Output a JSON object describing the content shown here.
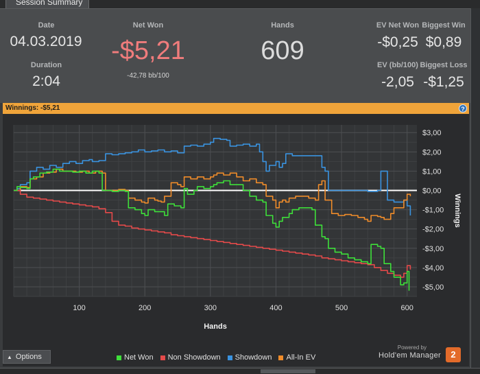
{
  "tab": {
    "label": "Session Summary"
  },
  "summary": {
    "date": {
      "label": "Date",
      "value": "04.03.2019"
    },
    "duration": {
      "label": "Duration",
      "value": "2:04"
    },
    "net_won": {
      "label": "Net Won",
      "value": "-$5,21",
      "sub": "-42,78 bb/100"
    },
    "hands": {
      "label": "Hands",
      "value": "609"
    },
    "ev_net_won": {
      "label": "EV Net Won",
      "value": "-$0,25"
    },
    "biggest_win": {
      "label": "Biggest Win",
      "value": "$0,89"
    },
    "ev_bb": {
      "label": "EV (bb/100)",
      "value": "-2,05"
    },
    "biggest_loss": {
      "label": "Biggest Loss",
      "value": "-$1,25"
    }
  },
  "banner": {
    "text": "Winnings:  -$5,21",
    "help": "?"
  },
  "options": {
    "label": "Options"
  },
  "brand": {
    "powered": "Powered by",
    "name": "Hold'em Manager",
    "badge": "2"
  },
  "colors": {
    "net_won": "#3ee03a",
    "non_showdown": "#e54a4a",
    "showdown": "#3a93e0",
    "all_in_ev": "#f08c2a",
    "zero_line": "#ffffff",
    "negative": "#f07c7c",
    "banner": "#f0a43a"
  },
  "chart_data": {
    "type": "line",
    "xlabel": "Hands",
    "ylabel": "Winnings",
    "xlim": [
      0,
      615
    ],
    "ylim": [
      -5.5,
      3.4
    ],
    "x_ticks": [
      100,
      200,
      300,
      400,
      500,
      600
    ],
    "y_ticks": [
      3,
      2,
      1,
      0,
      -1,
      -2,
      -3,
      -4,
      -5
    ],
    "y_tick_labels": [
      "$3,00",
      "$2,00",
      "$1,00",
      "$0,00",
      "-$1,00",
      "-$2,00",
      "-$3,00",
      "-$4,00",
      "-$5,00"
    ],
    "legend": "bottom",
    "grid": true,
    "series": [
      {
        "name": "Net Won",
        "color": "#3ee03a",
        "points": [
          [
            0,
            0.0
          ],
          [
            5,
            0.2
          ],
          [
            10,
            0.15
          ],
          [
            20,
            0.1
          ],
          [
            25,
            0.6
          ],
          [
            30,
            0.7
          ],
          [
            40,
            0.9
          ],
          [
            50,
            0.95
          ],
          [
            60,
            1.1
          ],
          [
            70,
            1.0
          ],
          [
            80,
            1.0
          ],
          [
            90,
            0.95
          ],
          [
            100,
            1.0
          ],
          [
            110,
            0.9
          ],
          [
            120,
            1.0
          ],
          [
            130,
            0.9
          ],
          [
            135,
            0.0
          ],
          [
            145,
            0.0
          ],
          [
            150,
            -0.05
          ],
          [
            160,
            0.0
          ],
          [
            170,
            -0.05
          ],
          [
            175,
            -0.9
          ],
          [
            185,
            -1.0
          ],
          [
            195,
            -1.2
          ],
          [
            200,
            -1.3
          ],
          [
            205,
            -1.0
          ],
          [
            215,
            -1.1
          ],
          [
            230,
            -1.3
          ],
          [
            235,
            -0.7
          ],
          [
            245,
            -0.8
          ],
          [
            255,
            -0.9
          ],
          [
            260,
            0.1
          ],
          [
            265,
            -0.2
          ],
          [
            275,
            0.0
          ],
          [
            280,
            0.2
          ],
          [
            290,
            0.1
          ],
          [
            300,
            0.2
          ],
          [
            305,
            0.3
          ],
          [
            310,
            0.4
          ],
          [
            320,
            0.5
          ],
          [
            330,
            0.3
          ],
          [
            340,
            0.3
          ],
          [
            350,
            0.0
          ],
          [
            360,
            -0.3
          ],
          [
            370,
            -0.5
          ],
          [
            380,
            -0.6
          ],
          [
            385,
            -1.3
          ],
          [
            395,
            -1.7
          ],
          [
            400,
            -1.9
          ],
          [
            405,
            -1.6
          ],
          [
            410,
            -1.4
          ],
          [
            420,
            -1.2
          ],
          [
            425,
            -1.0
          ],
          [
            435,
            -0.9
          ],
          [
            445,
            -0.9
          ],
          [
            455,
            -1.0
          ],
          [
            460,
            -1.8
          ],
          [
            470,
            -2.4
          ],
          [
            475,
            -2.5
          ],
          [
            480,
            -3.0
          ],
          [
            490,
            -3.2
          ],
          [
            500,
            -3.3
          ],
          [
            510,
            -3.5
          ],
          [
            520,
            -3.6
          ],
          [
            530,
            -3.7
          ],
          [
            540,
            -3.8
          ],
          [
            545,
            -2.8
          ],
          [
            555,
            -2.9
          ],
          [
            560,
            -3.0
          ],
          [
            565,
            -3.8
          ],
          [
            575,
            -4.2
          ],
          [
            580,
            -4.5
          ],
          [
            590,
            -4.9
          ],
          [
            595,
            -4.8
          ],
          [
            600,
            -4.2
          ],
          [
            603,
            -5.2
          ]
        ]
      },
      {
        "name": "Non Showdown",
        "color": "#e54a4a",
        "points": [
          [
            0,
            0.0
          ],
          [
            10,
            -0.2
          ],
          [
            20,
            -0.35
          ],
          [
            30,
            -0.4
          ],
          [
            40,
            -0.45
          ],
          [
            50,
            -0.5
          ],
          [
            60,
            -0.55
          ],
          [
            70,
            -0.6
          ],
          [
            80,
            -0.65
          ],
          [
            90,
            -0.7
          ],
          [
            100,
            -0.75
          ],
          [
            110,
            -0.8
          ],
          [
            120,
            -0.85
          ],
          [
            130,
            -0.95
          ],
          [
            140,
            -1.15
          ],
          [
            150,
            -1.6
          ],
          [
            160,
            -1.8
          ],
          [
            170,
            -1.85
          ],
          [
            180,
            -1.95
          ],
          [
            190,
            -2.0
          ],
          [
            200,
            -2.05
          ],
          [
            210,
            -2.1
          ],
          [
            220,
            -2.15
          ],
          [
            230,
            -2.2
          ],
          [
            240,
            -2.3
          ],
          [
            250,
            -2.35
          ],
          [
            260,
            -2.4
          ],
          [
            270,
            -2.45
          ],
          [
            280,
            -2.5
          ],
          [
            290,
            -2.55
          ],
          [
            300,
            -2.6
          ],
          [
            310,
            -2.65
          ],
          [
            320,
            -2.7
          ],
          [
            330,
            -2.75
          ],
          [
            340,
            -2.8
          ],
          [
            350,
            -2.85
          ],
          [
            360,
            -2.9
          ],
          [
            370,
            -2.95
          ],
          [
            380,
            -3.0
          ],
          [
            390,
            -3.05
          ],
          [
            400,
            -3.1
          ],
          [
            410,
            -3.15
          ],
          [
            420,
            -3.2
          ],
          [
            430,
            -3.25
          ],
          [
            440,
            -3.3
          ],
          [
            450,
            -3.35
          ],
          [
            460,
            -3.4
          ],
          [
            470,
            -3.5
          ],
          [
            480,
            -3.55
          ],
          [
            490,
            -3.6
          ],
          [
            500,
            -3.65
          ],
          [
            510,
            -3.7
          ],
          [
            520,
            -3.75
          ],
          [
            530,
            -3.8
          ],
          [
            540,
            -3.85
          ],
          [
            550,
            -4.0
          ],
          [
            560,
            -4.15
          ],
          [
            570,
            -4.3
          ],
          [
            580,
            -4.4
          ],
          [
            590,
            -4.5
          ],
          [
            595,
            -4.3
          ],
          [
            600,
            -3.9
          ],
          [
            605,
            -4.1
          ]
        ]
      },
      {
        "name": "Showdown",
        "color": "#3a93e0",
        "points": [
          [
            0,
            0.0
          ],
          [
            5,
            0.1
          ],
          [
            10,
            0.3
          ],
          [
            20,
            0.4
          ],
          [
            25,
            1.0
          ],
          [
            35,
            1.2
          ],
          [
            45,
            1.1
          ],
          [
            55,
            1.3
          ],
          [
            65,
            1.2
          ],
          [
            75,
            1.4
          ],
          [
            85,
            1.5
          ],
          [
            95,
            1.4
          ],
          [
            105,
            1.55
          ],
          [
            115,
            1.6
          ],
          [
            120,
            1.5
          ],
          [
            130,
            1.55
          ],
          [
            140,
            1.9
          ],
          [
            150,
            1.85
          ],
          [
            160,
            1.9
          ],
          [
            170,
            1.95
          ],
          [
            180,
            2.0
          ],
          [
            190,
            2.1
          ],
          [
            200,
            2.0
          ],
          [
            210,
            2.05
          ],
          [
            220,
            2.1
          ],
          [
            230,
            2.0
          ],
          [
            240,
            2.05
          ],
          [
            250,
            1.95
          ],
          [
            255,
            1.95
          ],
          [
            260,
            2.3
          ],
          [
            270,
            2.35
          ],
          [
            280,
            2.3
          ],
          [
            290,
            2.4
          ],
          [
            300,
            2.5
          ],
          [
            305,
            2.7
          ],
          [
            315,
            2.65
          ],
          [
            325,
            2.6
          ],
          [
            330,
            2.3
          ],
          [
            340,
            2.35
          ],
          [
            350,
            2.4
          ],
          [
            360,
            2.3
          ],
          [
            370,
            2.4
          ],
          [
            375,
            2.0
          ],
          [
            380,
            1.5
          ],
          [
            385,
            1.0
          ],
          [
            390,
            1.3
          ],
          [
            400,
            1.5
          ],
          [
            405,
            1.2
          ],
          [
            410,
            1.4
          ],
          [
            415,
            1.9
          ],
          [
            425,
            1.8
          ],
          [
            435,
            1.8
          ],
          [
            445,
            1.8
          ],
          [
            455,
            1.8
          ],
          [
            460,
            1.8
          ],
          [
            465,
            1.8
          ],
          [
            470,
            1.2
          ],
          [
            475,
            1.0
          ],
          [
            480,
            0.0
          ],
          [
            490,
            0.0
          ],
          [
            500,
            0.0
          ],
          [
            510,
            0.0
          ],
          [
            520,
            0.0
          ],
          [
            530,
            0.0
          ],
          [
            540,
            -0.05
          ],
          [
            550,
            -0.05
          ],
          [
            555,
            0.0
          ],
          [
            560,
            1.0
          ],
          [
            565,
            1.0
          ],
          [
            570,
            -0.5
          ],
          [
            580,
            -0.6
          ],
          [
            590,
            -0.6
          ],
          [
            595,
            -0.5
          ],
          [
            600,
            -0.8
          ],
          [
            605,
            -1.3
          ]
        ]
      },
      {
        "name": "All-In EV",
        "color": "#f08c2a",
        "points": [
          [
            0,
            0.0
          ],
          [
            10,
            0.2
          ],
          [
            20,
            0.15
          ],
          [
            25,
            0.6
          ],
          [
            35,
            0.7
          ],
          [
            45,
            0.9
          ],
          [
            55,
            0.95
          ],
          [
            65,
            1.1
          ],
          [
            75,
            1.0
          ],
          [
            85,
            1.0
          ],
          [
            95,
            0.95
          ],
          [
            105,
            1.0
          ],
          [
            115,
            0.9
          ],
          [
            125,
            1.0
          ],
          [
            135,
            0.9
          ],
          [
            140,
            0.0
          ],
          [
            150,
            0.0
          ],
          [
            160,
            0.05
          ],
          [
            170,
            0.0
          ],
          [
            175,
            -0.4
          ],
          [
            185,
            -0.5
          ],
          [
            195,
            -0.6
          ],
          [
            200,
            -0.65
          ],
          [
            205,
            -0.4
          ],
          [
            215,
            -0.5
          ],
          [
            220,
            -0.55
          ],
          [
            225,
            -0.6
          ],
          [
            230,
            -0.3
          ],
          [
            240,
            0.4
          ],
          [
            250,
            0.3
          ],
          [
            255,
            0.2
          ],
          [
            260,
            0.7
          ],
          [
            270,
            0.6
          ],
          [
            280,
            0.7
          ],
          [
            290,
            0.6
          ],
          [
            300,
            0.7
          ],
          [
            305,
            0.8
          ],
          [
            310,
            0.9
          ],
          [
            320,
            0.8
          ],
          [
            330,
            0.9
          ],
          [
            340,
            0.7
          ],
          [
            350,
            0.5
          ],
          [
            360,
            0.6
          ],
          [
            370,
            0.4
          ],
          [
            380,
            0.3
          ],
          [
            385,
            -0.3
          ],
          [
            395,
            -0.5
          ],
          [
            400,
            -0.9
          ],
          [
            405,
            -0.6
          ],
          [
            410,
            -0.5
          ],
          [
            415,
            -0.6
          ],
          [
            420,
            -0.4
          ],
          [
            430,
            -0.3
          ],
          [
            440,
            -0.3
          ],
          [
            450,
            -0.4
          ],
          [
            460,
            -0.5
          ],
          [
            465,
            0.3
          ],
          [
            470,
            0.5
          ],
          [
            475,
            -0.5
          ],
          [
            485,
            -1.2
          ],
          [
            495,
            -1.3
          ],
          [
            505,
            -1.25
          ],
          [
            515,
            -1.3
          ],
          [
            525,
            -1.4
          ],
          [
            535,
            -1.5
          ],
          [
            540,
            -1.6
          ],
          [
            545,
            -1.3
          ],
          [
            555,
            -1.35
          ],
          [
            560,
            -1.4
          ],
          [
            565,
            -1.5
          ],
          [
            575,
            -1.2
          ],
          [
            580,
            -0.9
          ],
          [
            590,
            -0.9
          ],
          [
            595,
            -0.5
          ],
          [
            600,
            -0.2
          ],
          [
            605,
            -0.3
          ]
        ]
      }
    ]
  }
}
